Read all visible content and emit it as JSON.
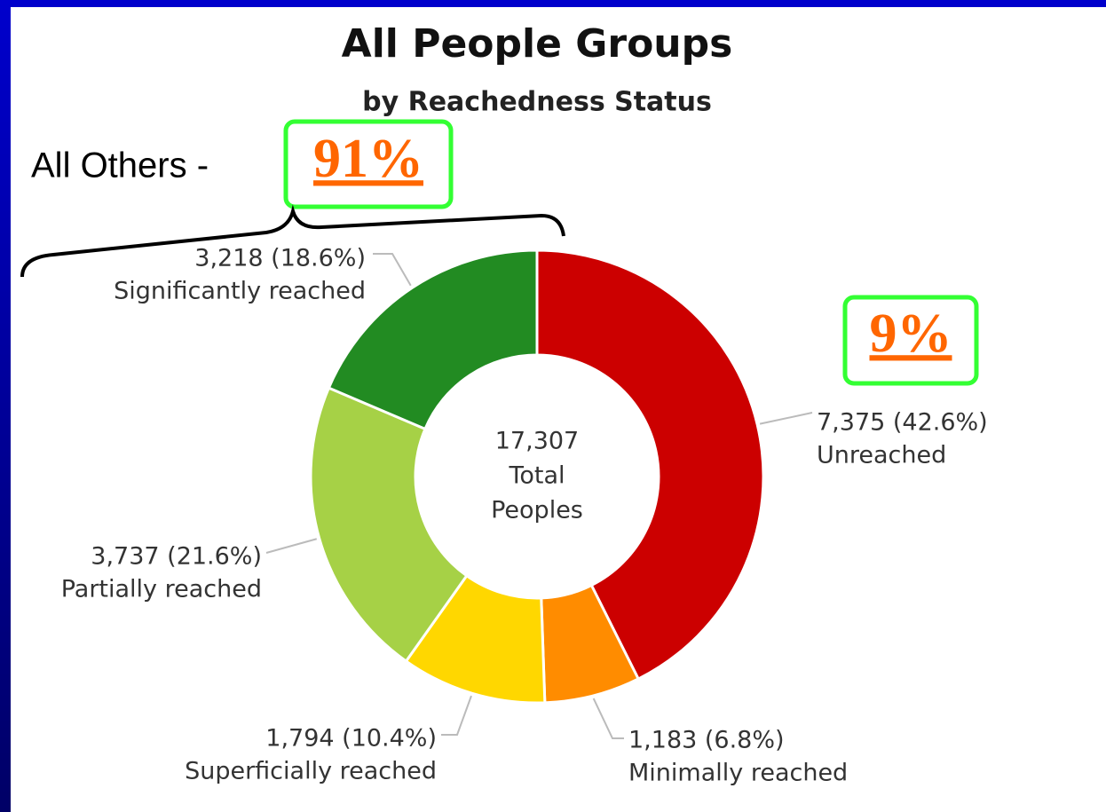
{
  "chart_data": {
    "type": "pie",
    "title": "All People Groups",
    "subtitle": "by Reachedness Status",
    "categories": [
      "Unreached",
      "Minimally reached",
      "Superficially reached",
      "Partially reached",
      "Significantly reached"
    ],
    "values": [
      7375,
      1183,
      1794,
      3737,
      3218
    ],
    "value_labels": [
      "7,375 (42.6%)",
      "1,183 (6.8%)",
      "1,794 (10.4%)",
      "3,737 (21.6%)",
      "3,218 (18.6%)"
    ],
    "colors": [
      "#cc0000",
      "#ff8c00",
      "#ffd700",
      "#a6d146",
      "#228b22"
    ],
    "center_label": [
      "17,307",
      "Total",
      "Peoples"
    ],
    "annotations": [
      "All Others -",
      "91%",
      "9%"
    ]
  }
}
